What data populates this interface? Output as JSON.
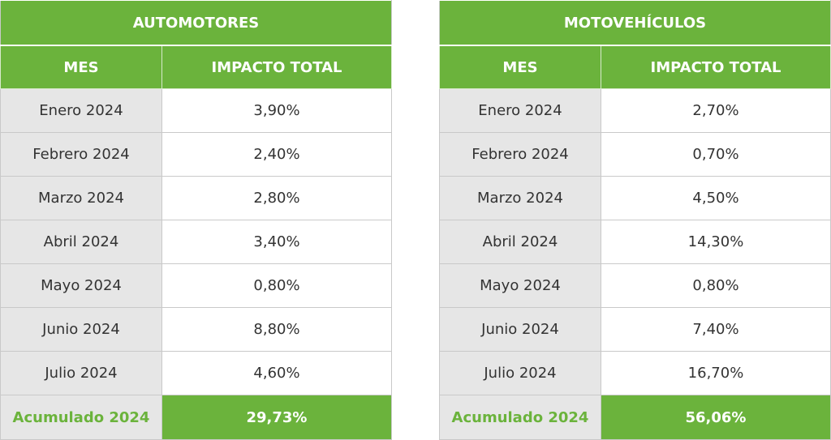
{
  "tables": [
    {
      "title": "AUTOMOTORES",
      "col_month": "MES",
      "col_impact": "IMPACTO TOTAL",
      "rows": [
        {
          "month": "Enero 2024",
          "value": "3,90%"
        },
        {
          "month": "Febrero 2024",
          "value": "2,40%"
        },
        {
          "month": "Marzo 2024",
          "value": "2,80%"
        },
        {
          "month": "Abril 2024",
          "value": "3,40%"
        },
        {
          "month": "Mayo 2024",
          "value": "0,80%"
        },
        {
          "month": "Junio 2024",
          "value": "8,80%"
        },
        {
          "month": "Julio 2024",
          "value": "4,60%"
        }
      ],
      "total_label": "Acumulado 2024",
      "total_value": "29,73%"
    },
    {
      "title": "MOTOVEHÍCULOS",
      "col_month": "MES",
      "col_impact": "IMPACTO TOTAL",
      "rows": [
        {
          "month": "Enero 2024",
          "value": "2,70%"
        },
        {
          "month": "Febrero 2024",
          "value": "0,70%"
        },
        {
          "month": "Marzo 2024",
          "value": "4,50%"
        },
        {
          "month": "Abril 2024",
          "value": "14,30%"
        },
        {
          "month": "Mayo 2024",
          "value": "0,80%"
        },
        {
          "month": "Junio 2024",
          "value": "7,40%"
        },
        {
          "month": "Julio 2024",
          "value": "16,70%"
        }
      ],
      "total_label": "Acumulado 2024",
      "total_value": "56,06%"
    }
  ],
  "colors": {
    "header_green": "#6bb33c",
    "month_cell_gray": "#e6e6e6",
    "grid_line": "#c9c9c9",
    "text_dark": "#333333"
  }
}
